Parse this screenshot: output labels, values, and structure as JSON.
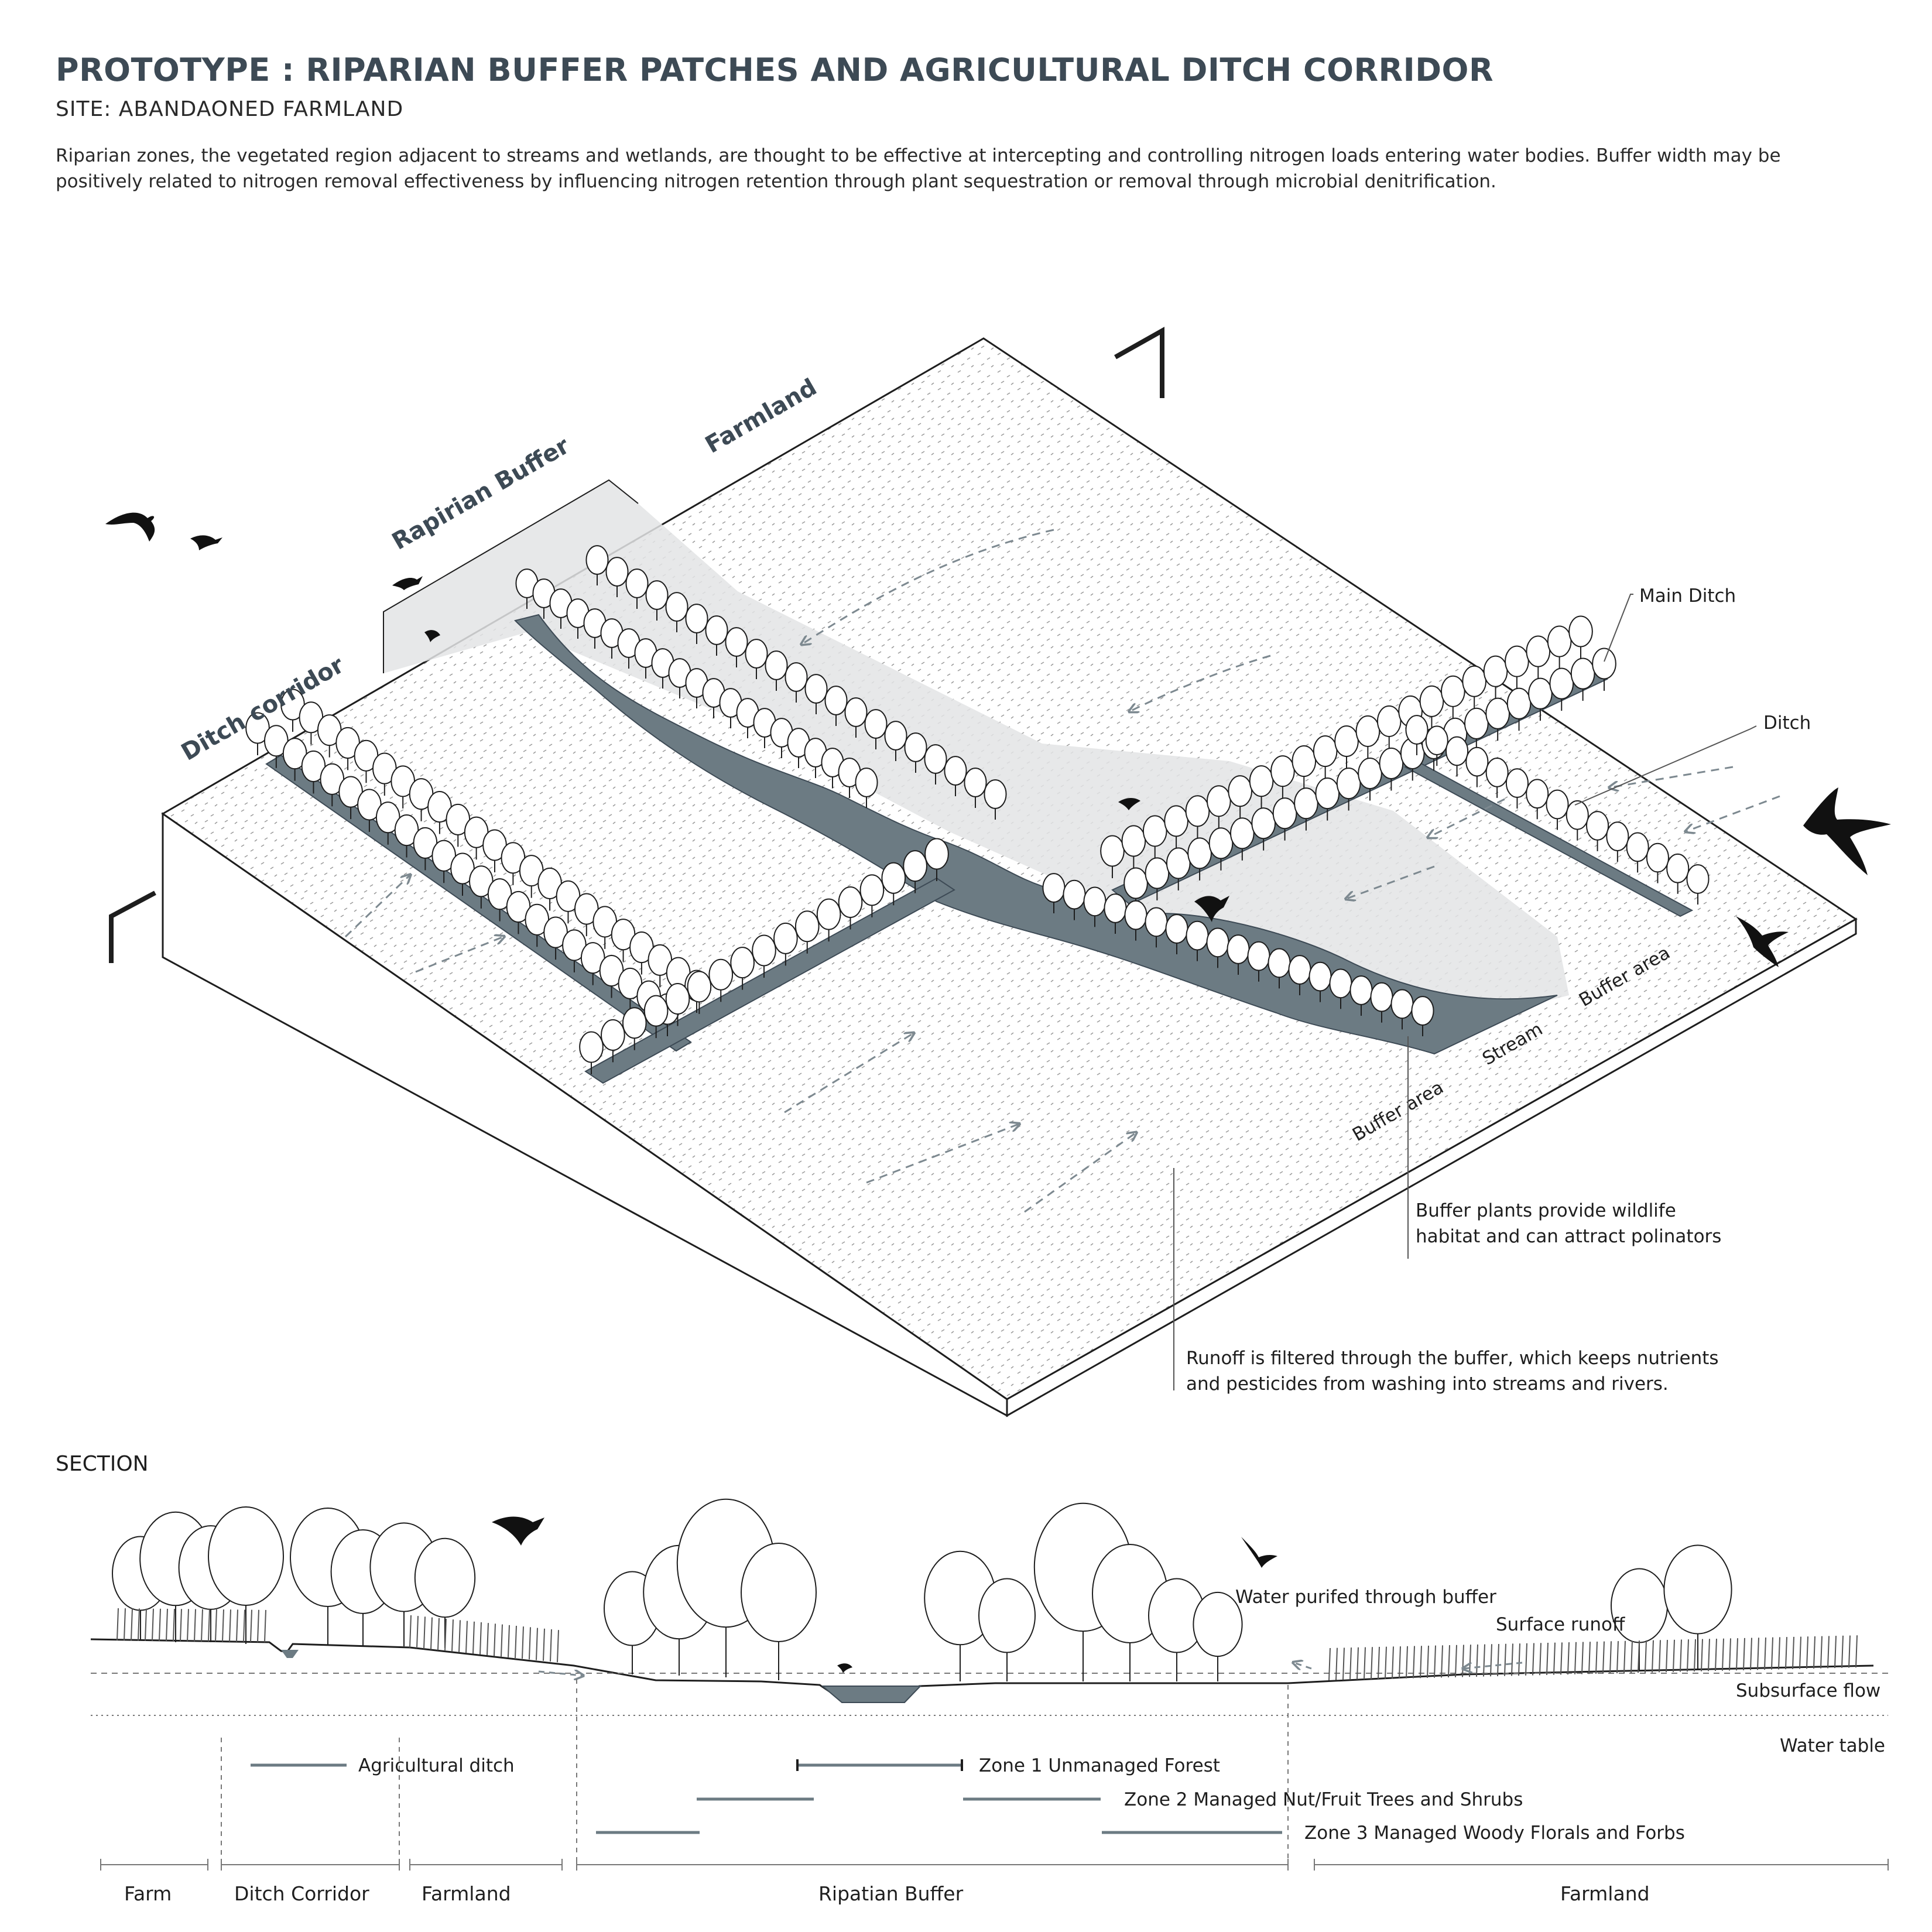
{
  "header": {
    "title": "PROTOTYPE : RIPARIAN BUFFER PATCHES AND AGRICULTURAL DITCH CORRIDOR",
    "subtitle": "SITE: ABANDAONED FARMLAND",
    "description": "Riparian zones, the vegetated region adjacent to streams and wetlands, are thought to be effective at intercepting and controlling nitrogen loads entering water bodies. Buffer width may be positively related to nitrogen removal effectiveness by influencing nitrogen retention through plant sequestration or removal through microbial denitrification."
  },
  "colors": {
    "water": "#6c7b83",
    "accent": "#3d4a55",
    "line": "#1e1e1e",
    "buffer_shade": "#e8e9ea",
    "arrow": "#7d8990"
  },
  "axon": {
    "zone_labels": {
      "farmland": "Farmland",
      "riparian_buffer": "Rapirian Buffer",
      "ditch_corridor": "Ditch corridor"
    },
    "edge_labels": {
      "buffer_area_right": "Buffer area",
      "stream": "Stream",
      "buffer_area_left": "Buffer area"
    },
    "callouts": {
      "main_ditch": "Main Ditch",
      "ditch": "Ditch",
      "buffer_plants_line1": "Buffer plants provide wildlife",
      "buffer_plants_line2": "habitat and can attract polinators",
      "runoff_line1": "Runoff is filtered through the buffer, which keeps nutrients",
      "runoff_line2": "and pesticides from washing into streams and rivers."
    }
  },
  "section": {
    "title": "SECTION",
    "annotations": {
      "water_purified": "Water purifed through buffer",
      "surface_runoff": "Surface runoff",
      "subsurface_flow": "Subsurface flow",
      "water_table": "Water table"
    },
    "legend": {
      "agricultural_ditch": "Agricultural ditch",
      "zone1": "Zone 1 Unmanaged Forest",
      "zone2": "Zone 2 Managed Nut/Fruit Trees and Shrubs",
      "zone3": "Zone 3 Managed Woody Florals and Forbs"
    },
    "extents": {
      "farm": "Farm",
      "ditch_corridor": "Ditch Corridor",
      "farmland_left": "Farmland",
      "riparian_buffer": "Ripatian Buffer",
      "farmland_right": "Farmland"
    }
  }
}
